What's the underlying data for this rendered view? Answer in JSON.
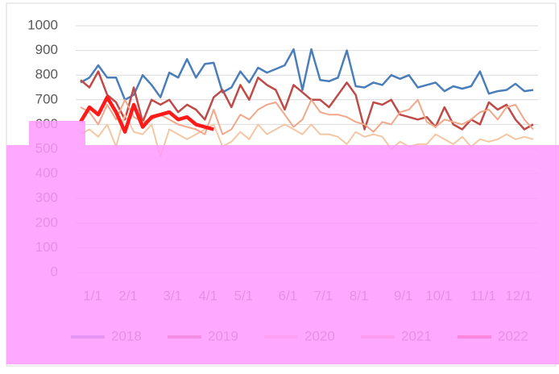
{
  "chart_data": {
    "type": "line",
    "categories": [
      null,
      "1/1",
      null,
      null,
      null,
      "2/1",
      null,
      null,
      null,
      null,
      "3/1",
      null,
      null,
      null,
      "4/1",
      null,
      null,
      null,
      "5/1",
      null,
      null,
      null,
      null,
      "6/1",
      null,
      null,
      null,
      "7/1",
      null,
      null,
      null,
      "8/1",
      null,
      null,
      null,
      null,
      "9/1",
      null,
      null,
      null,
      "10/1",
      null,
      null,
      null,
      null,
      "11/1",
      null,
      null,
      null,
      "12/1",
      null,
      null
    ],
    "ylim": [
      0,
      1000
    ],
    "yticks": [
      0,
      100,
      200,
      300,
      400,
      500,
      600,
      700,
      800,
      900,
      1000
    ],
    "grid": true,
    "series": [
      {
        "name": "2018",
        "color": "#4a7ebb",
        "width": 2.5,
        "values": [
          770,
          790,
          840,
          790,
          790,
          700,
          720,
          800,
          760,
          710,
          810,
          790,
          865,
          790,
          845,
          850,
          730,
          750,
          815,
          770,
          830,
          810,
          825,
          840,
          905,
          740,
          905,
          780,
          775,
          790,
          900,
          755,
          750,
          770,
          760,
          800,
          785,
          800,
          750,
          760,
          770,
          735,
          755,
          745,
          755,
          815,
          725,
          735,
          740,
          765,
          735,
          740
        ]
      },
      {
        "name": "2019",
        "color": "#be4b48",
        "width": 2.5,
        "values": [
          780,
          750,
          815,
          720,
          690,
          620,
          750,
          610,
          700,
          680,
          700,
          650,
          680,
          660,
          620,
          710,
          740,
          670,
          760,
          700,
          790,
          760,
          740,
          660,
          760,
          730,
          700,
          700,
          670,
          720,
          770,
          720,
          580,
          690,
          680,
          700,
          640,
          630,
          620,
          630,
          590,
          670,
          600,
          580,
          620,
          600,
          690,
          660,
          680,
          620,
          580,
          600
        ]
      },
      {
        "name": "2020",
        "color": "#f4c7a4",
        "width": 2,
        "values": [
          560,
          580,
          550,
          600,
          510,
          640,
          570,
          560,
          600,
          470,
          580,
          560,
          540,
          560,
          580,
          600,
          510,
          530,
          570,
          540,
          600,
          560,
          580,
          600,
          580,
          560,
          600,
          560,
          560,
          550,
          520,
          570,
          550,
          560,
          550,
          500,
          530,
          510,
          520,
          520,
          560,
          540,
          520,
          550,
          510,
          540,
          530,
          540,
          560,
          540,
          550,
          540
        ]
      },
      {
        "name": "2021",
        "color": "#f0a88a",
        "width": 2,
        "values": [
          670,
          650,
          600,
          680,
          620,
          700,
          630,
          610,
          620,
          640,
          620,
          600,
          590,
          580,
          560,
          660,
          560,
          580,
          640,
          620,
          660,
          680,
          690,
          640,
          590,
          620,
          700,
          650,
          640,
          640,
          630,
          610,
          600,
          570,
          610,
          600,
          650,
          660,
          700,
          610,
          590,
          620,
          610,
          600,
          620,
          650,
          660,
          620,
          670,
          680,
          620,
          580
        ]
      },
      {
        "name": "2022",
        "color": "#ff1a1a",
        "width": 4.5,
        "values": [
          610,
          670,
          640,
          710,
          650,
          570,
          680,
          590,
          630,
          640,
          650,
          620,
          630,
          600,
          590,
          580,
          null,
          null,
          null,
          null,
          null,
          null,
          null,
          null,
          null,
          null,
          null,
          null,
          null,
          null,
          null,
          null,
          null,
          null,
          null,
          null,
          null,
          null,
          null,
          null,
          null,
          null,
          null,
          null,
          null,
          null,
          null,
          null,
          null,
          null,
          null,
          null
        ]
      }
    ]
  }
}
